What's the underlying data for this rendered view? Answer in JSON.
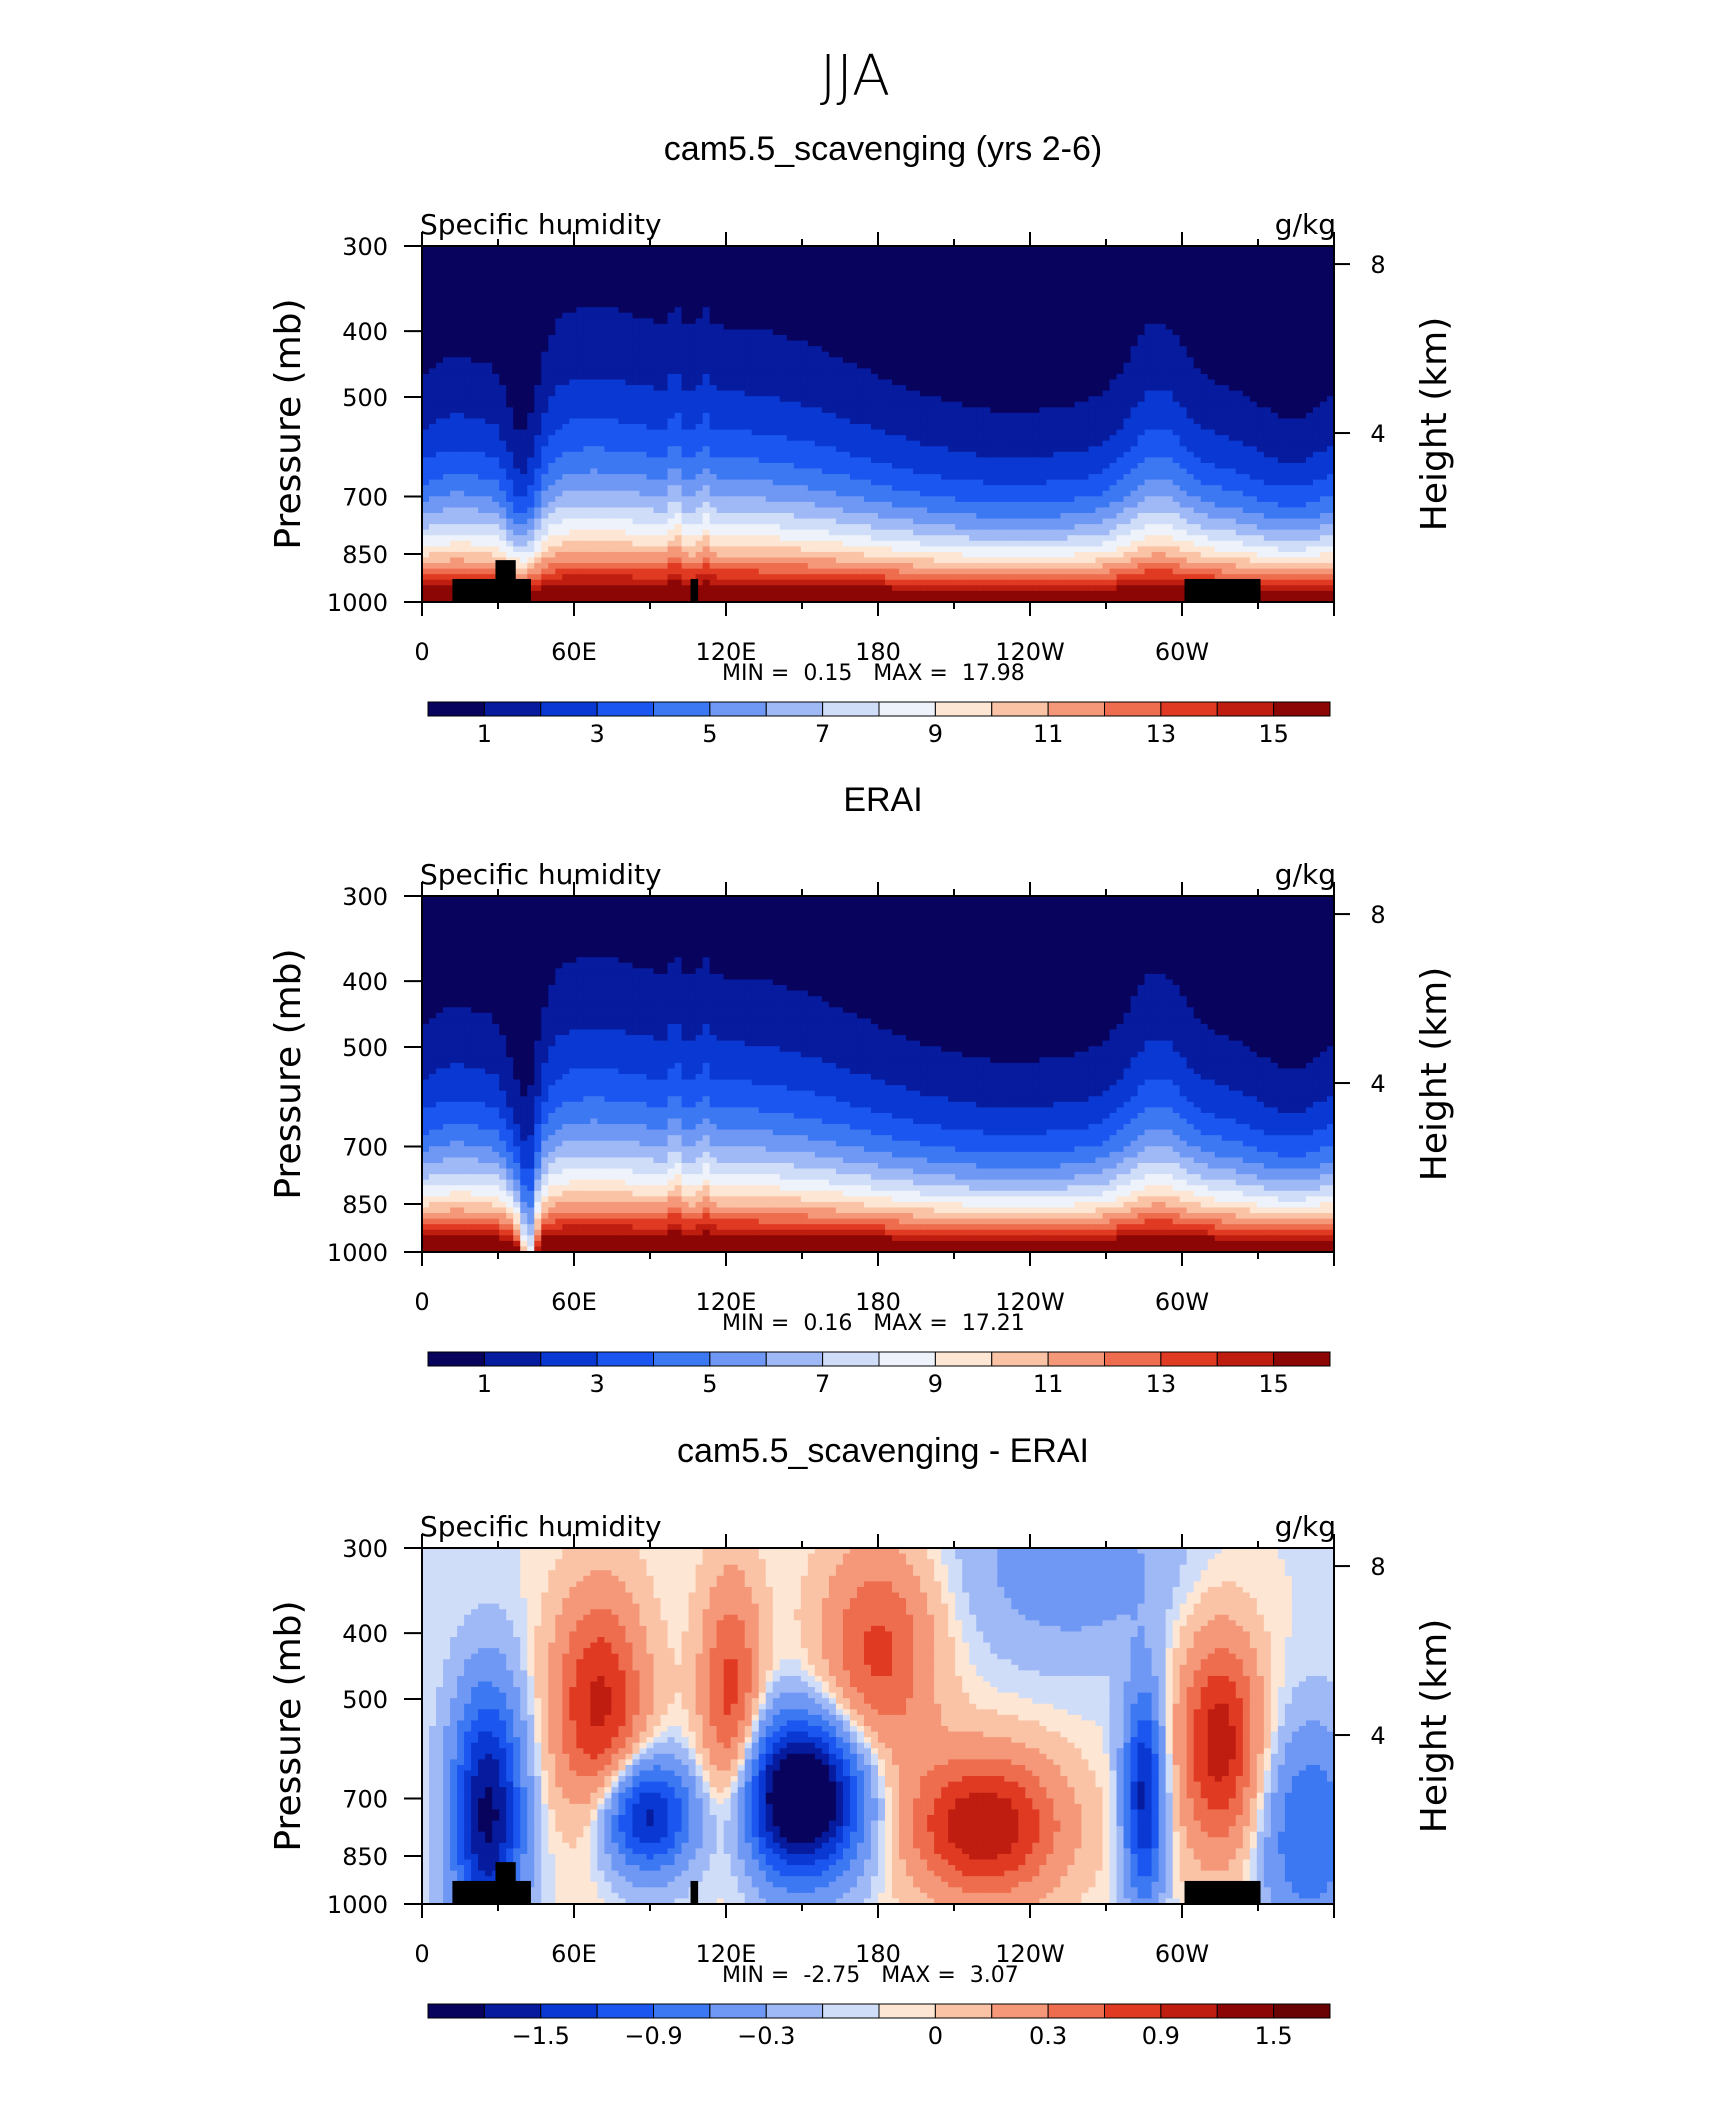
{
  "figure": {
    "title": "JJA"
  },
  "axes_common": {
    "x_ticks": [
      "0",
      "60E",
      "120E",
      "180",
      "120W",
      "60W"
    ],
    "y_ticks": [
      "300",
      "400",
      "500",
      "700",
      "850",
      "1000"
    ],
    "y_tick_values": [
      300,
      400,
      500,
      700,
      850,
      1000
    ],
    "ylabel": "Pressure (mb)",
    "y2label": "Height (km)",
    "y2_ticks": [
      "8",
      "4"
    ],
    "y2_tick_values_km": [
      8,
      4
    ],
    "xlim_deg": [
      0,
      360
    ],
    "ylim_mb": [
      1000,
      300
    ]
  },
  "colors": {
    "full": [
      "#08045e",
      "#061b9e",
      "#0a38d2",
      "#1a56ef",
      "#3d78f3",
      "#6f98f4",
      "#9fb9f6",
      "#cfddf9",
      "#eef3fb",
      "#fde6d3",
      "#fac3a6",
      "#f5987a",
      "#ee6d4e",
      "#e03b22",
      "#bf1d10",
      "#8c0606"
    ],
    "diff": [
      "#08045e",
      "#061b9e",
      "#0a38d2",
      "#1a56ef",
      "#3d78f3",
      "#6f98f4",
      "#9fb9f6",
      "#cfddf9",
      "#fde6d3",
      "#fac3a6",
      "#f5987a",
      "#ee6d4e",
      "#e03b22",
      "#bf1d10",
      "#8c0606",
      "#6a0303"
    ]
  },
  "chart_data": [
    {
      "type": "heatmap",
      "title": "cam5.5_scavenging (yrs 2-6)",
      "left_label": "Specific humidity",
      "right_label": "g/kg",
      "min_label": "MIN =",
      "min_value": "0.15",
      "max_label": "MAX =",
      "max_value": "17.98",
      "colorbar_labels": [
        "1",
        "3",
        "5",
        "7",
        "9",
        "11",
        "13",
        "15"
      ],
      "levels": [
        1,
        2,
        3,
        4,
        5,
        6,
        7,
        8,
        9,
        10,
        11,
        12,
        13,
        14,
        15
      ],
      "terrain_mask": true
    },
    {
      "type": "heatmap",
      "title": "ERAI",
      "left_label": "Specific humidity",
      "right_label": "g/kg",
      "min_label": "MIN =",
      "min_value": "0.16",
      "max_label": "MAX =",
      "max_value": "17.21",
      "colorbar_labels": [
        "1",
        "3",
        "5",
        "7",
        "9",
        "11",
        "13",
        "15"
      ],
      "levels": [
        1,
        2,
        3,
        4,
        5,
        6,
        7,
        8,
        9,
        10,
        11,
        12,
        13,
        14,
        15
      ],
      "terrain_mask": false
    },
    {
      "type": "heatmap",
      "title": "cam5.5_scavenging - ERAI",
      "left_label": "Specific humidity",
      "right_label": "g/kg",
      "min_label": "MIN =",
      "min_value": "-2.75",
      "max_label": "MAX =",
      "max_value": "3.07",
      "colorbar_labels": [
        "−1.5",
        "−0.9",
        "−0.3",
        "0",
        "0.3",
        "0.9",
        "1.5"
      ],
      "levels": [
        -1.8,
        -1.5,
        -1.2,
        -0.9,
        -0.6,
        -0.3,
        -0.1,
        0,
        0.1,
        0.3,
        0.6,
        0.9,
        1.2,
        1.5,
        1.8
      ],
      "terrain_mask": true
    }
  ]
}
